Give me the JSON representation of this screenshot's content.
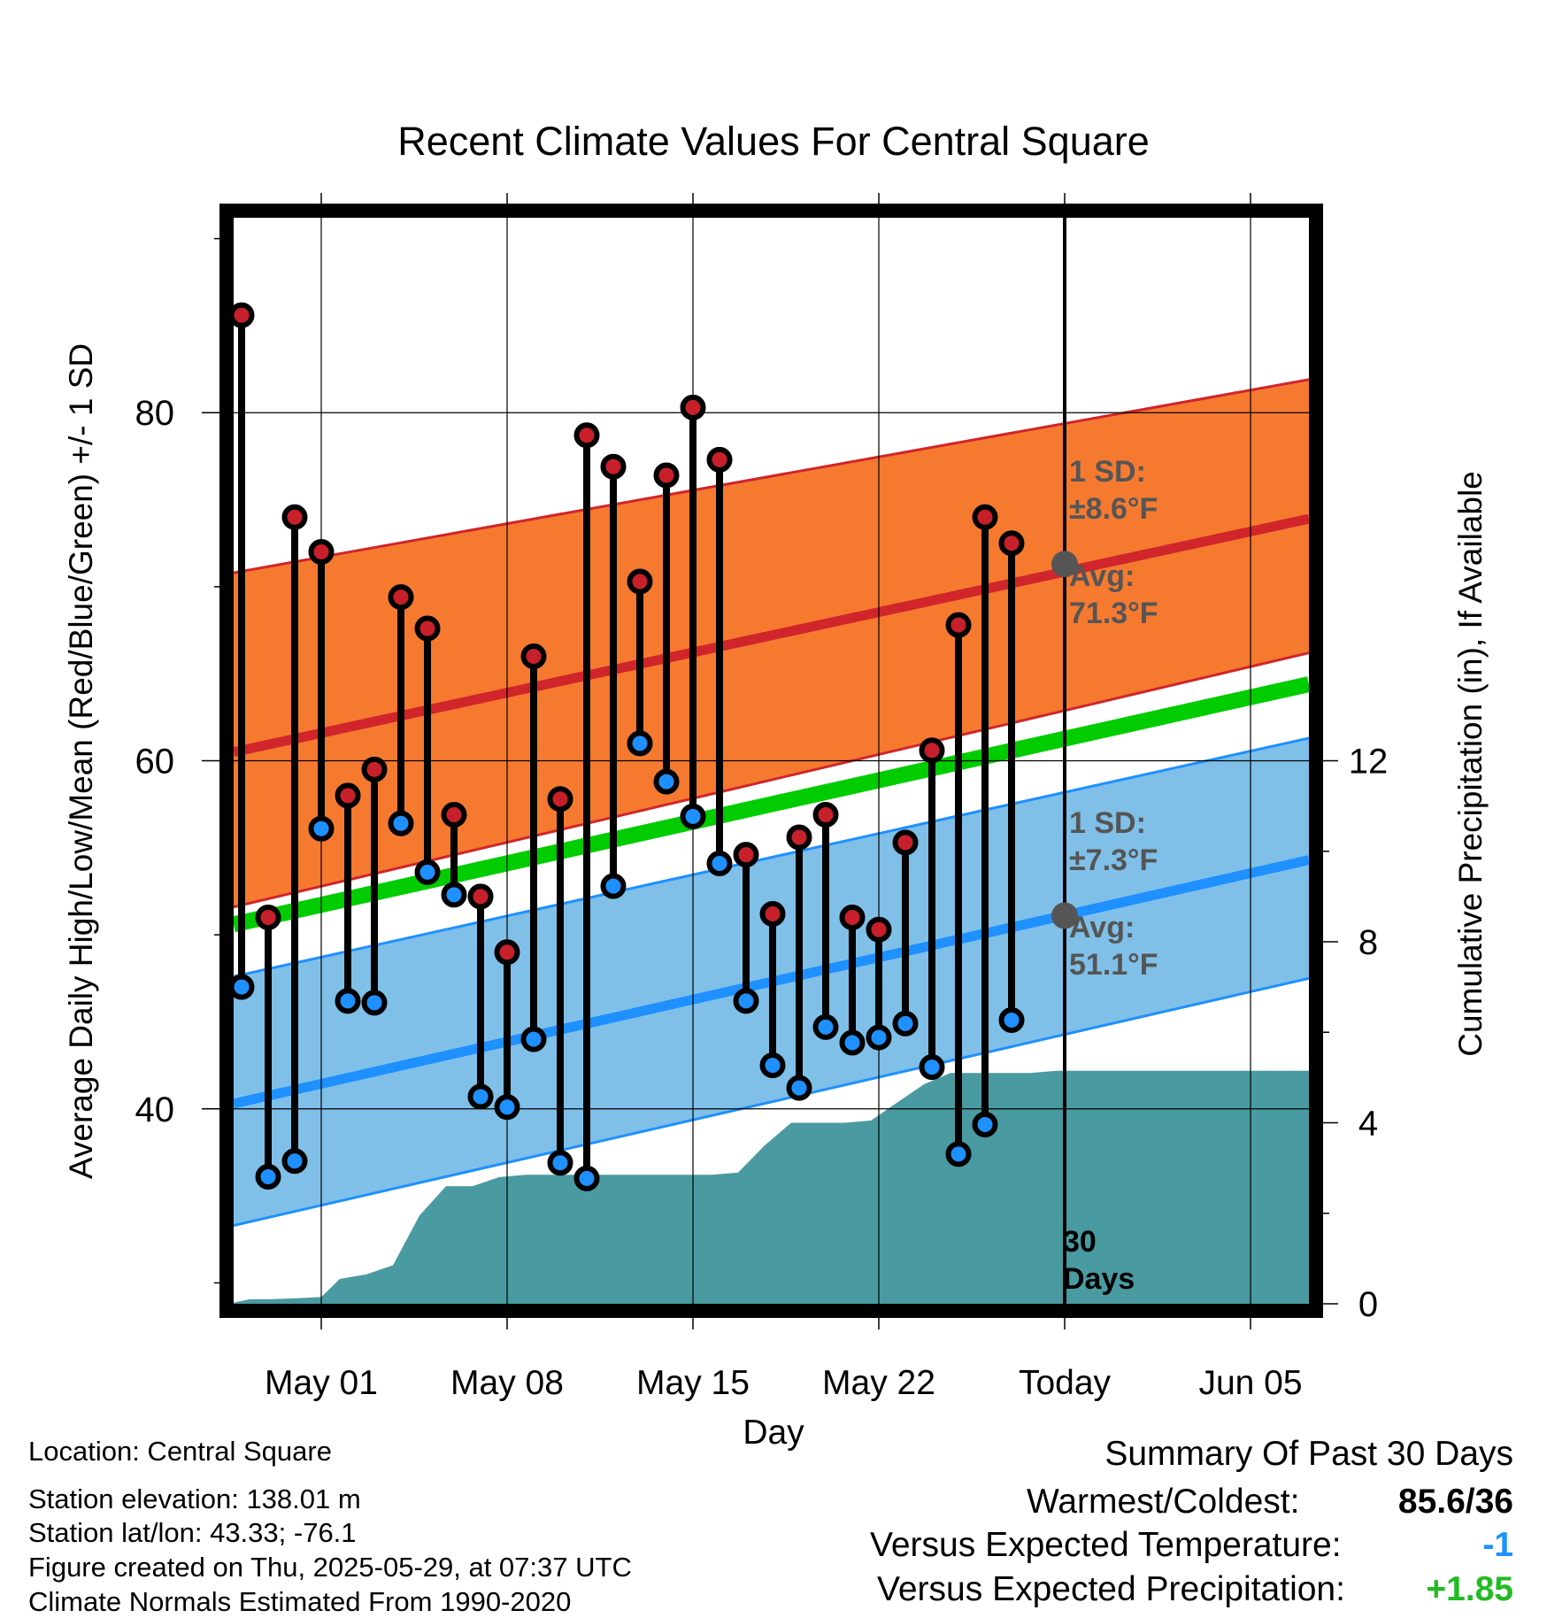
{
  "chart_data": {
    "type": "line",
    "title": "Recent Climate Values For Central Square",
    "xlabel": "Day",
    "ylabel": "Average Daily High/Low/Mean (Red/Blue/Green) +/- 1 SD",
    "y2label": "Cumulative Precipitation (in), If Available",
    "ylim": [
      28.8,
      91.2
    ],
    "y2lim": [
      0,
      24
    ],
    "x_tick_labels": [
      "May 01",
      "May 08",
      "May 15",
      "May 22",
      "Today",
      "Jun 05"
    ],
    "x_tick_days": [
      1,
      8,
      15,
      22,
      29,
      36
    ],
    "xlim": [
      -2.3,
      38.2
    ],
    "y_ticks": [
      40,
      60,
      80
    ],
    "y2_ticks": [
      0,
      4,
      8,
      12
    ],
    "days": [
      -2,
      -1,
      0,
      1,
      2,
      3,
      4,
      5,
      6,
      7,
      8,
      9,
      10,
      11,
      12,
      13,
      14,
      15,
      16,
      17,
      18,
      19,
      20,
      21,
      22,
      23,
      24,
      25,
      26,
      27,
      28
    ],
    "highs": [
      85.6,
      51,
      74,
      72,
      58,
      59.5,
      69.4,
      67.6,
      56.9,
      52.2,
      49,
      66,
      57.8,
      78.7,
      76.9,
      70.3,
      76.4,
      80.3,
      77.3,
      54.6,
      51.2,
      55.6,
      56.9,
      51,
      50.3,
      55.3,
      60.6,
      67.8,
      74,
      72.5,
      null
    ],
    "lows": [
      47,
      36.1,
      37,
      56.1,
      46.2,
      46.1,
      56.4,
      53.6,
      52.3,
      40.7,
      40.1,
      44,
      36.9,
      36,
      52.8,
      61,
      58.8,
      56.8,
      54.1,
      46.2,
      42.5,
      41.2,
      44.7,
      43.8,
      44.1,
      44.9,
      42.4,
      37.4,
      39.1,
      45.1,
      null
    ],
    "normals": {
      "high_mean_start": 60.5,
      "high_mean_end": 73.9,
      "high_sd_upper_start": 70.8,
      "high_sd_upper_end": 81.9,
      "high_sd_lower_start": 51.6,
      "high_sd_lower_end": 66.2,
      "low_mean_start": 40.3,
      "low_mean_end": 54.3,
      "low_sd_upper_start": 47.6,
      "low_sd_upper_end": 61.3,
      "low_sd_lower_start": 33.3,
      "low_sd_lower_end": 47.5,
      "mean_start": 50.6,
      "mean_end": 64.4
    },
    "precip_days": [
      -2.5,
      -1.7,
      -1,
      0,
      1,
      1.7,
      2.7,
      3.7,
      4.7,
      5.7,
      6.7,
      7.7,
      8.7,
      9.7,
      10.7,
      11.7,
      12.7,
      13.7,
      14.7,
      15.7,
      16.7,
      17.7,
      18.7,
      19.7,
      20.7,
      21.7,
      22.7,
      23.7,
      24.7,
      25.7,
      26.7,
      27.7,
      28.7,
      38.2
    ],
    "precip_cum": [
      0,
      0.1,
      0.1,
      0.12,
      0.15,
      0.55,
      0.65,
      0.85,
      1.95,
      2.6,
      2.6,
      2.8,
      2.85,
      2.85,
      2.85,
      2.85,
      2.85,
      2.85,
      2.85,
      2.85,
      2.9,
      3.5,
      4,
      4,
      4,
      4.05,
      4.45,
      4.85,
      5.1,
      5.1,
      5.1,
      5.1,
      5.15,
      5.15
    ],
    "annotations": {
      "high_sd_line1": "1 SD:",
      "high_sd_line2": "±8.6°F",
      "high_avg_line1": "Avg:",
      "high_avg_line2": "71.3°F",
      "low_sd_line1": "1 SD:",
      "low_sd_line2": "±7.3°F",
      "low_avg_line1": "Avg:",
      "low_avg_line2": "51.1°F",
      "days_line1": "30",
      "days_line2": "Days",
      "today_high_avg": 71.3,
      "today_low_avg": 51.1
    },
    "colors": {
      "high_band": "#f57a30",
      "high_line": "#d0252a",
      "low_band": "#80c0e8",
      "low_line": "#1e90ff",
      "mean_line": "#00cc00",
      "precip": "#4a9aa2",
      "annotation": "#555555",
      "high_dot": "#c8202a",
      "low_dot": "#1e90ff"
    }
  },
  "footer": {
    "location": "Location: Central Square",
    "elevation": "Station elevation: 138.01 m",
    "latlon": "Station lat/lon: 43.33; -76.1",
    "created": "Figure created on Thu, 2025-05-29, at 07:37 UTC",
    "normals": "Climate Normals Estimated From 1990-2020"
  },
  "summary": {
    "title": "Summary Of Past 30 Days",
    "warmest_label": "Warmest/Coldest:",
    "warmest_value": "85.6/36",
    "temp_label": "Versus Expected Temperature:",
    "temp_value": "-1",
    "temp_color": "#1e90ff",
    "precip_label": "Versus Expected Precipitation:",
    "precip_value": "+1.85",
    "precip_color": "#22bb22"
  }
}
